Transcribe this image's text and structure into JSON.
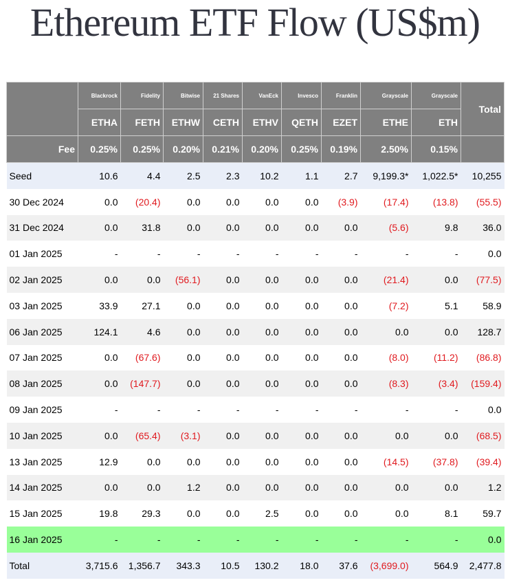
{
  "title": "Ethereum ETF Flow (US$m)",
  "colors": {
    "header_bg": "#808080",
    "negative": "#e0191e",
    "highlight_row": "#99ff99",
    "seed_total_bg": "#e9eef8",
    "striped_bg": "#f0f0f0"
  },
  "columns": [
    {
      "issuer": "Blackrock",
      "ticker": "ETHA",
      "fee": "0.25%"
    },
    {
      "issuer": "Fidelity",
      "ticker": "FETH",
      "fee": "0.25%"
    },
    {
      "issuer": "Bitwise",
      "ticker": "ETHW",
      "fee": "0.20%"
    },
    {
      "issuer": "21 Shares",
      "ticker": "CETH",
      "fee": "0.21%"
    },
    {
      "issuer": "VanEck",
      "ticker": "ETHV",
      "fee": "0.20%"
    },
    {
      "issuer": "Invesco",
      "ticker": "QETH",
      "fee": "0.25%"
    },
    {
      "issuer": "Franklin",
      "ticker": "EZET",
      "fee": "0.19%"
    },
    {
      "issuer": "Grayscale",
      "ticker": "ETHE",
      "fee": "2.50%"
    },
    {
      "issuer": "Grayscale",
      "ticker": "ETH",
      "fee": "0.15%"
    }
  ],
  "total_header": "Total",
  "fee_label": "Fee",
  "rows": [
    {
      "label": "Seed",
      "style": "seed",
      "values": [
        "10.6",
        "4.4",
        "2.5",
        "2.3",
        "10.2",
        "1.1",
        "2.7",
        "9,199.3*",
        "1,022.5*",
        "10,255"
      ]
    },
    {
      "label": "30 Dec 2024",
      "style": "odd",
      "values": [
        "0.0",
        "(20.4)",
        "0.0",
        "0.0",
        "0.0",
        "0.0",
        "(3.9)",
        "(17.4)",
        "(13.8)",
        "(55.5)"
      ]
    },
    {
      "label": "31 Dec 2024",
      "style": "even",
      "values": [
        "0.0",
        "31.8",
        "0.0",
        "0.0",
        "0.0",
        "0.0",
        "0.0",
        "(5.6)",
        "9.8",
        "36.0"
      ]
    },
    {
      "label": "01 Jan 2025",
      "style": "odd",
      "values": [
        "-",
        "-",
        "-",
        "-",
        "-",
        "-",
        "-",
        "-",
        "-",
        "0.0"
      ]
    },
    {
      "label": "02 Jan 2025",
      "style": "even",
      "values": [
        "0.0",
        "0.0",
        "(56.1)",
        "0.0",
        "0.0",
        "0.0",
        "0.0",
        "(21.4)",
        "0.0",
        "(77.5)"
      ]
    },
    {
      "label": "03 Jan 2025",
      "style": "odd",
      "values": [
        "33.9",
        "27.1",
        "0.0",
        "0.0",
        "0.0",
        "0.0",
        "0.0",
        "(7.2)",
        "5.1",
        "58.9"
      ]
    },
    {
      "label": "06 Jan 2025",
      "style": "even",
      "values": [
        "124.1",
        "4.6",
        "0.0",
        "0.0",
        "0.0",
        "0.0",
        "0.0",
        "0.0",
        "0.0",
        "128.7"
      ]
    },
    {
      "label": "07 Jan 2025",
      "style": "odd",
      "values": [
        "0.0",
        "(67.6)",
        "0.0",
        "0.0",
        "0.0",
        "0.0",
        "0.0",
        "(8.0)",
        "(11.2)",
        "(86.8)"
      ]
    },
    {
      "label": "08 Jan 2025",
      "style": "even",
      "values": [
        "0.0",
        "(147.7)",
        "0.0",
        "0.0",
        "0.0",
        "0.0",
        "0.0",
        "(8.3)",
        "(3.4)",
        "(159.4)"
      ]
    },
    {
      "label": "09 Jan 2025",
      "style": "odd",
      "values": [
        "-",
        "-",
        "-",
        "-",
        "-",
        "-",
        "-",
        "-",
        "-",
        "0.0"
      ]
    },
    {
      "label": "10 Jan 2025",
      "style": "even",
      "values": [
        "0.0",
        "(65.4)",
        "(3.1)",
        "0.0",
        "0.0",
        "0.0",
        "0.0",
        "0.0",
        "0.0",
        "(68.5)"
      ]
    },
    {
      "label": "13 Jan 2025",
      "style": "odd",
      "values": [
        "12.9",
        "0.0",
        "0.0",
        "0.0",
        "0.0",
        "0.0",
        "0.0",
        "(14.5)",
        "(37.8)",
        "(39.4)"
      ]
    },
    {
      "label": "14 Jan 2025",
      "style": "even",
      "values": [
        "0.0",
        "0.0",
        "1.2",
        "0.0",
        "0.0",
        "0.0",
        "0.0",
        "0.0",
        "0.0",
        "1.2"
      ]
    },
    {
      "label": "15 Jan 2025",
      "style": "odd",
      "values": [
        "19.8",
        "29.3",
        "0.0",
        "0.0",
        "2.5",
        "0.0",
        "0.0",
        "0.0",
        "8.1",
        "59.7"
      ]
    },
    {
      "label": "16 Jan 2025",
      "style": "highlight",
      "values": [
        "-",
        "-",
        "-",
        "-",
        "-",
        "-",
        "-",
        "-",
        "-",
        "0.0"
      ]
    },
    {
      "label": "Total",
      "style": "total",
      "values": [
        "3,715.6",
        "1,356.7",
        "343.3",
        "10.5",
        "130.2",
        "18.0",
        "37.6",
        "(3,699.0)",
        "564.9",
        "2,477.8"
      ]
    }
  ]
}
